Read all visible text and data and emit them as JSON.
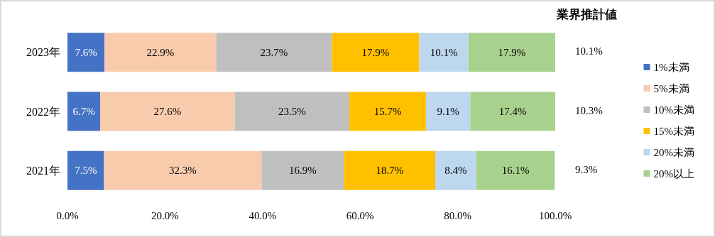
{
  "chart_data": {
    "type": "bar",
    "orientation": "horizontal",
    "stacked": true,
    "categories": [
      "2023年",
      "2022年",
      "2021年"
    ],
    "series": [
      {
        "name": "1%未満",
        "color": "#4472c4",
        "values": [
          7.6,
          6.7,
          7.5
        ],
        "value_labels": [
          "7.6%",
          "6.7%",
          "7.5%"
        ]
      },
      {
        "name": "5%未満",
        "color": "#f8cbad",
        "values": [
          22.9,
          27.6,
          32.3
        ],
        "value_labels": [
          "22.9%",
          "27.6%",
          "32.3%"
        ]
      },
      {
        "name": "10%未満",
        "color": "#bfbfbf",
        "values": [
          23.7,
          23.5,
          16.9
        ],
        "value_labels": [
          "23.7%",
          "23.5%",
          "16.9%"
        ]
      },
      {
        "name": "15%未満",
        "color": "#ffc000",
        "values": [
          17.9,
          15.7,
          18.7
        ],
        "value_labels": [
          "17.9%",
          "15.7%",
          "18.7%"
        ]
      },
      {
        "name": "20%未満",
        "color": "#bdd7ee",
        "values": [
          10.1,
          9.1,
          8.4
        ],
        "value_labels": [
          "10.1%",
          "9.1%",
          "8.4%"
        ]
      },
      {
        "name": "20%以上",
        "color": "#a9d18e",
        "values": [
          17.9,
          17.4,
          16.1
        ],
        "value_labels": [
          "17.9%",
          "17.4%",
          "16.1%"
        ]
      }
    ],
    "xlim": [
      0,
      100
    ],
    "xticks": [
      {
        "value": 0,
        "label": "0.0%"
      },
      {
        "value": 20,
        "label": "20.0%"
      },
      {
        "value": 40,
        "label": "40.0%"
      },
      {
        "value": 60,
        "label": "60.0%"
      },
      {
        "value": 80,
        "label": "80.0%"
      },
      {
        "value": 100,
        "label": "100.0%"
      }
    ],
    "grid": false,
    "legend": "right",
    "annotations": [
      "業界推計値",
      "10.1%",
      "10.3%",
      "9.3%"
    ]
  }
}
